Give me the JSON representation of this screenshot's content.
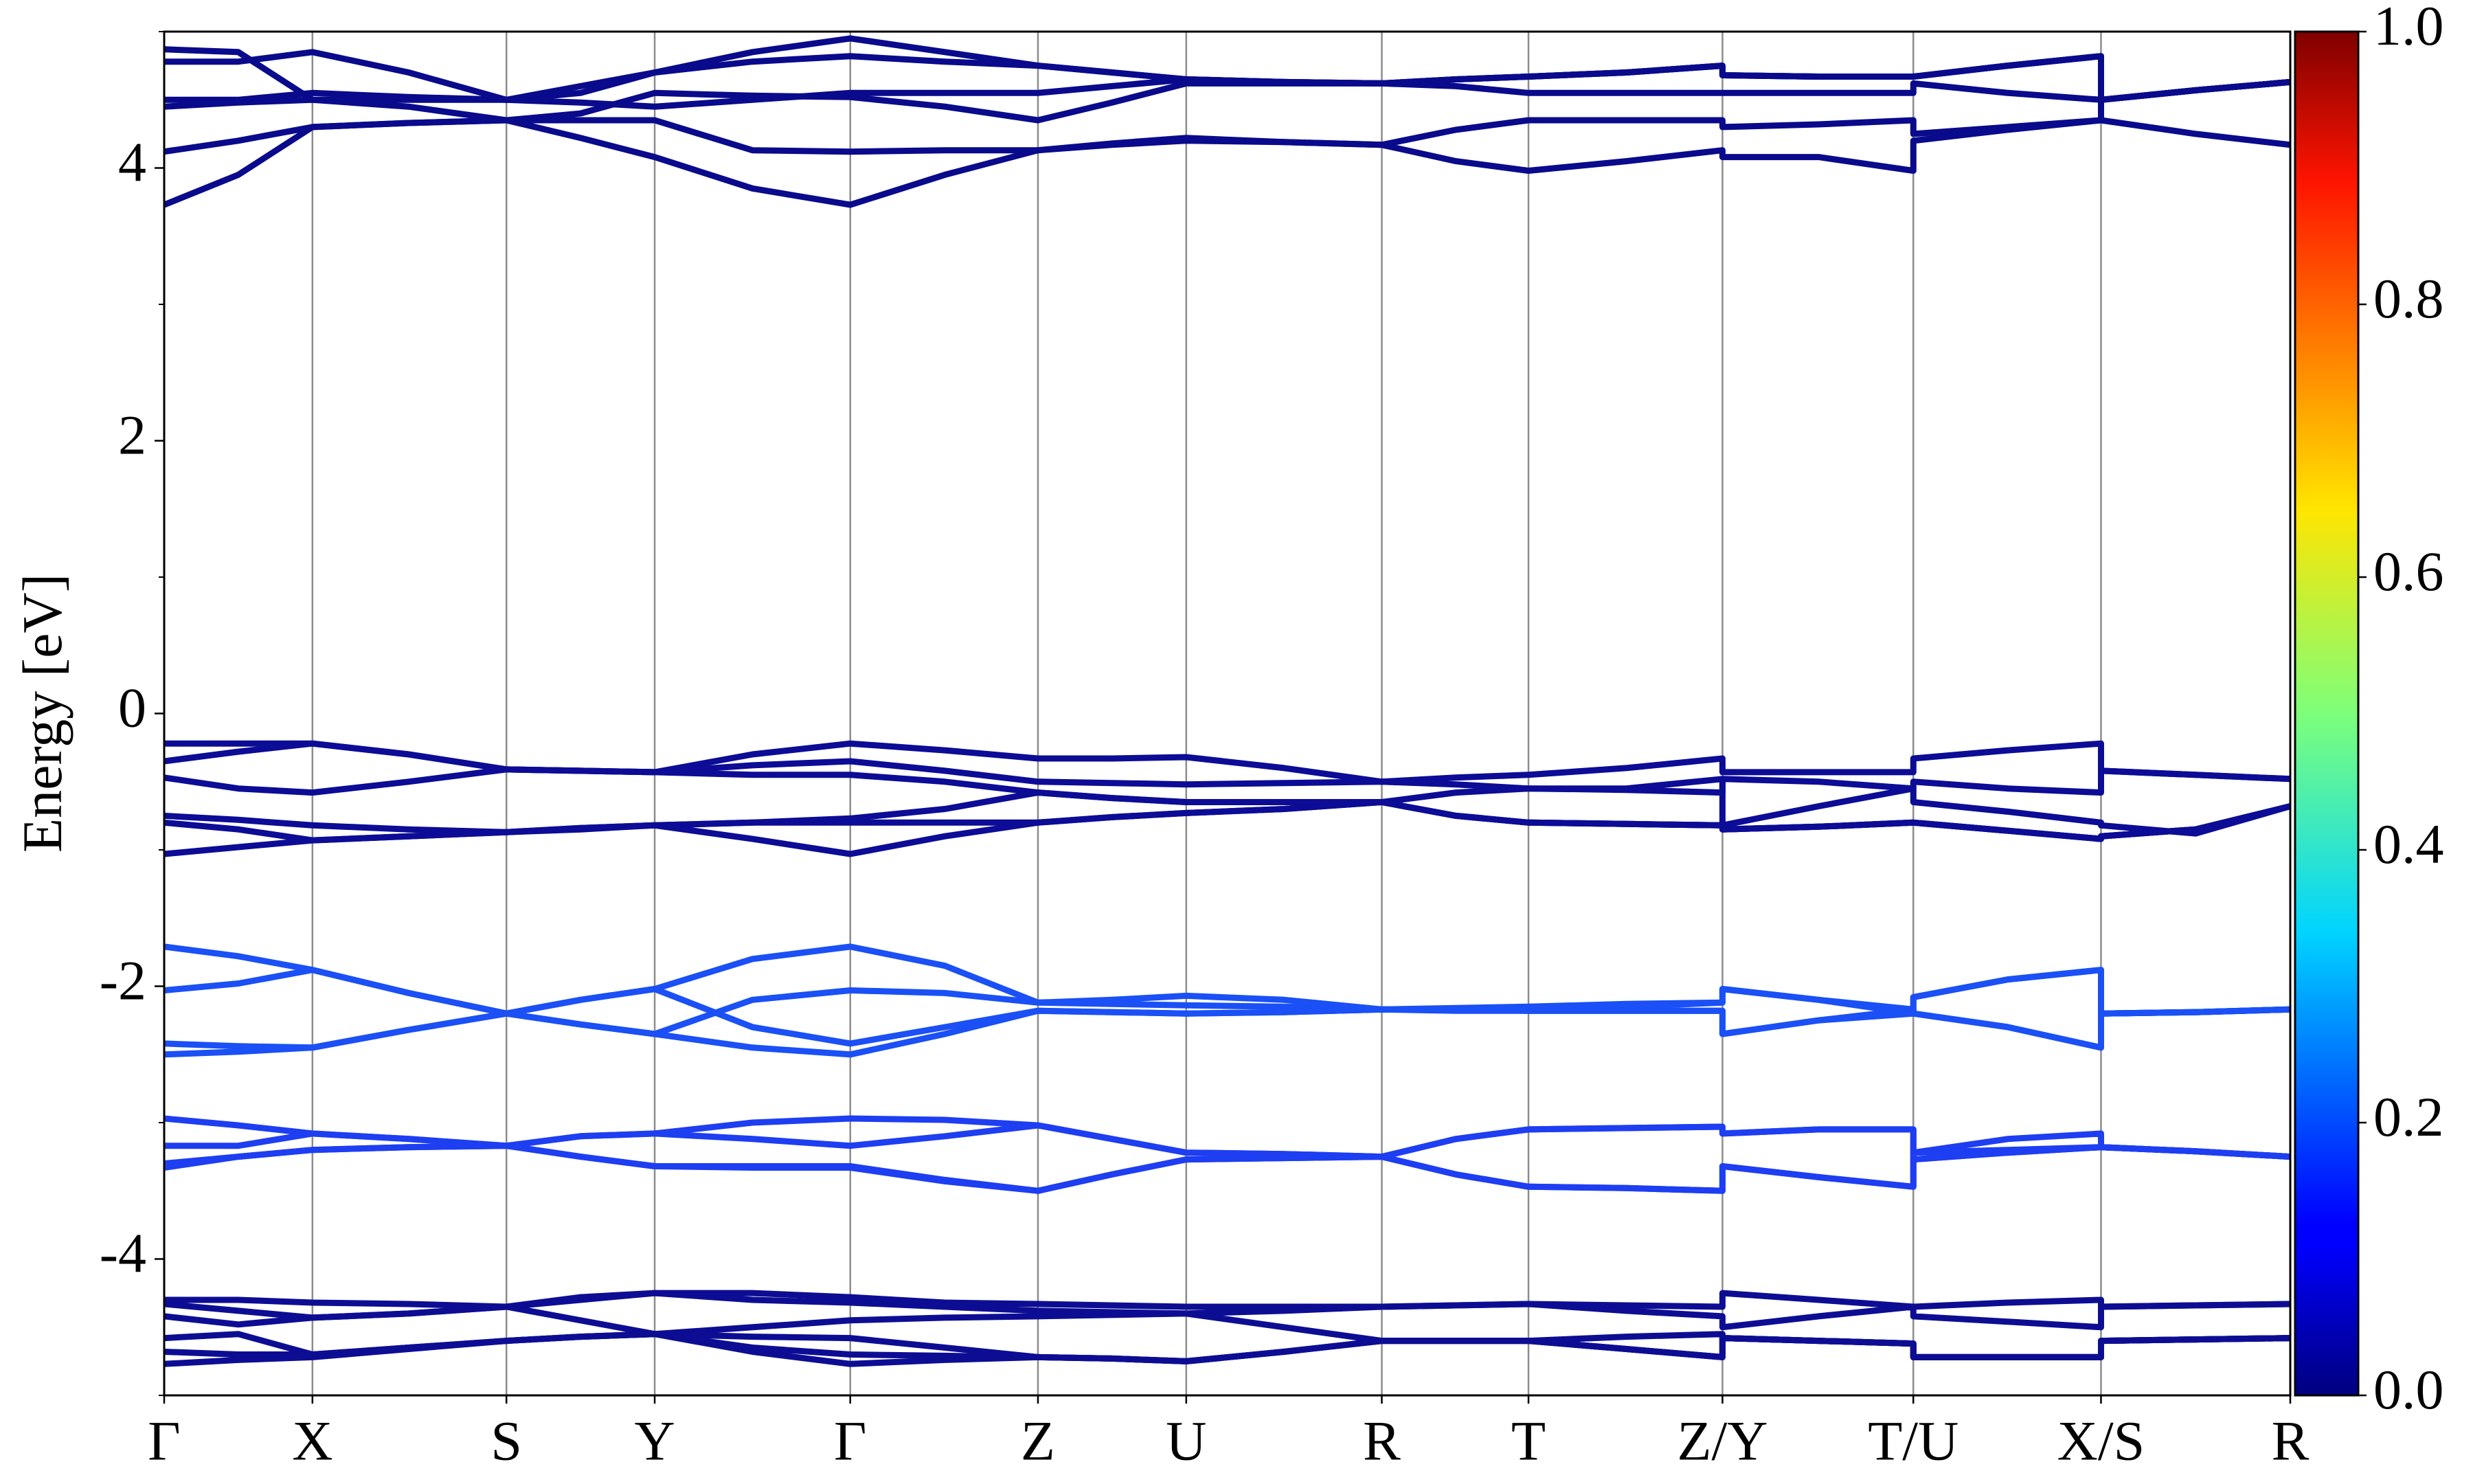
{
  "chart_data": {
    "type": "line",
    "ylabel": "Energy [eV]",
    "x": [
      0,
      0.47,
      0.94,
      1.55,
      2.17,
      2.64,
      3.11,
      3.73,
      4.35,
      4.95,
      5.54,
      6.01,
      6.48,
      7.1,
      7.72,
      8.19,
      8.65,
      9.27,
      9.88,
      9.88,
      10.49,
      11.09,
      11.09,
      11.69,
      12.28,
      12.28,
      12.88,
      13.48
    ],
    "xlim": [
      0,
      13.48
    ],
    "xticks": [
      {
        "value": 0,
        "label": "Γ"
      },
      {
        "value": 0.94,
        "label": "X"
      },
      {
        "value": 2.17,
        "label": "S"
      },
      {
        "value": 3.11,
        "label": "Y"
      },
      {
        "value": 4.35,
        "label": "Γ"
      },
      {
        "value": 5.54,
        "label": "Z"
      },
      {
        "value": 6.48,
        "label": "U"
      },
      {
        "value": 7.72,
        "label": "R"
      },
      {
        "value": 8.65,
        "label": "T"
      },
      {
        "value": 9.88,
        "label": "Z/Y"
      },
      {
        "value": 11.09,
        "label": "T/U"
      },
      {
        "value": 12.28,
        "label": "X/S"
      },
      {
        "value": 13.48,
        "label": "R"
      }
    ],
    "ylim": [
      -5,
      5
    ],
    "yticks": [
      -4,
      -2,
      0,
      2,
      4
    ],
    "yminorticks": [
      -5,
      -3,
      -1,
      1,
      3,
      5
    ],
    "xgrid": true,
    "colorbar": {
      "cmap": "jet",
      "clim": [
        0,
        1
      ],
      "ticks": [
        {
          "value": 0,
          "label": "0.0"
        },
        {
          "value": 0.2,
          "label": "0.2"
        },
        {
          "value": 0.4,
          "label": "0.4"
        },
        {
          "value": 0.6,
          "label": "0.6"
        },
        {
          "value": 0.8,
          "label": "0.8"
        },
        {
          "value": 1,
          "label": "1.0"
        }
      ]
    },
    "series": [
      {
        "color": "#0a0a8c",
        "values": [
          3.73,
          3.95,
          4.3,
          4.33,
          4.35,
          4.22,
          4.08,
          3.85,
          3.73,
          3.95,
          4.13,
          4.17,
          4.2,
          4.19,
          4.17,
          4.05,
          3.98,
          4.05,
          4.13,
          4.08,
          4.08,
          3.98,
          4.2,
          4.28,
          4.35,
          4.35,
          4.25,
          4.17
        ]
      },
      {
        "color": "#0a0a8c",
        "values": [
          4.12,
          4.2,
          4.3,
          4.33,
          4.35,
          4.35,
          4.35,
          4.13,
          4.12,
          4.13,
          4.13,
          4.18,
          4.22,
          4.19,
          4.17,
          4.28,
          4.35,
          4.35,
          4.35,
          4.3,
          4.32,
          4.35,
          4.25,
          4.3,
          4.35,
          4.5,
          4.57,
          4.63
        ]
      },
      {
        "color": "#0a0a8c",
        "values": [
          4.45,
          4.48,
          4.5,
          4.45,
          4.35,
          4.4,
          4.55,
          4.53,
          4.52,
          4.45,
          4.35,
          4.48,
          4.62,
          4.62,
          4.62,
          4.6,
          4.55,
          4.55,
          4.55,
          4.55,
          4.55,
          4.55,
          4.62,
          4.55,
          4.5,
          4.5,
          4.57,
          4.63
        ]
      },
      {
        "color": "#0a0a8c",
        "values": [
          4.5,
          4.5,
          4.55,
          4.52,
          4.5,
          4.48,
          4.45,
          4.5,
          4.55,
          4.55,
          4.55,
          4.6,
          4.65,
          4.63,
          4.62,
          4.65,
          4.67,
          4.7,
          4.75,
          4.68,
          4.67,
          4.67,
          4.67,
          4.75,
          4.82,
          4.5,
          4.57,
          4.63
        ]
      },
      {
        "color": "#0a0a8c",
        "values": [
          4.78,
          4.78,
          4.85,
          4.7,
          4.5,
          4.55,
          4.7,
          4.78,
          4.82,
          4.78,
          4.75,
          4.7,
          4.65,
          4.63,
          4.62,
          4.65,
          4.67,
          4.7,
          4.75,
          4.68,
          4.67,
          4.67,
          4.67,
          4.75,
          4.82,
          4.5,
          4.57,
          4.63
        ]
      },
      {
        "color": "#0a0a8c",
        "values": [
          4.87,
          4.85,
          4.5,
          4.5,
          4.5,
          4.6,
          4.7,
          4.85,
          4.95,
          4.85,
          4.75,
          4.7,
          4.65,
          4.63,
          4.62,
          4.65,
          4.67,
          4.7,
          4.75,
          4.68,
          4.67,
          4.67,
          4.67,
          4.75,
          4.82,
          4.5,
          4.57,
          4.63
        ]
      },
      {
        "color": "#0c0c96",
        "values": [
          -0.22,
          -0.22,
          -0.22,
          -0.3,
          -0.41,
          -0.42,
          -0.43,
          -0.3,
          -0.22,
          -0.27,
          -0.33,
          -0.33,
          -0.32,
          -0.4,
          -0.5,
          -0.47,
          -0.45,
          -0.4,
          -0.33,
          -0.43,
          -0.43,
          -0.43,
          -0.33,
          -0.27,
          -0.22,
          -0.42,
          -0.45,
          -0.48
        ]
      },
      {
        "color": "#0c0c96",
        "values": [
          -0.35,
          -0.28,
          -0.22,
          -0.3,
          -0.41,
          -0.42,
          -0.43,
          -0.38,
          -0.35,
          -0.42,
          -0.5,
          -0.51,
          -0.52,
          -0.51,
          -0.5,
          -0.52,
          -0.55,
          -0.56,
          -0.58,
          -0.48,
          -0.5,
          -0.55,
          -0.5,
          -0.55,
          -0.58,
          -0.42,
          -0.45,
          -0.48
        ]
      },
      {
        "color": "#0c0c96",
        "values": [
          -0.47,
          -0.55,
          -0.58,
          -0.5,
          -0.41,
          -0.42,
          -0.43,
          -0.45,
          -0.45,
          -0.5,
          -0.58,
          -0.62,
          -0.65,
          -0.65,
          -0.65,
          -0.58,
          -0.55,
          -0.55,
          -0.48,
          -0.82,
          -0.68,
          -0.55,
          -0.65,
          -0.72,
          -0.8,
          -0.82,
          -0.88,
          -0.68
        ]
      },
      {
        "color": "#0c0c96",
        "values": [
          -0.75,
          -0.78,
          -0.82,
          -0.85,
          -0.87,
          -0.85,
          -0.82,
          -0.8,
          -0.77,
          -0.7,
          -0.58,
          -0.62,
          -0.65,
          -0.65,
          -0.65,
          -0.75,
          -0.8,
          -0.81,
          -0.82,
          -0.85,
          -0.83,
          -0.8,
          -0.8,
          -0.86,
          -0.92,
          -0.9,
          -0.85,
          -0.68
        ]
      },
      {
        "color": "#0c0c96",
        "values": [
          -0.8,
          -0.85,
          -0.93,
          -0.9,
          -0.87,
          -0.84,
          -0.82,
          -0.8,
          -0.8,
          -0.8,
          -0.8,
          -0.76,
          -0.73,
          -0.7,
          -0.65,
          -0.75,
          -0.8,
          -0.81,
          -0.82,
          -0.85,
          -0.83,
          -0.8,
          -0.8,
          -0.86,
          -0.92,
          -0.9,
          -0.85,
          -0.68
        ]
      },
      {
        "color": "#0c0c96",
        "values": [
          -1.03,
          -0.98,
          -0.93,
          -0.9,
          -0.87,
          -0.84,
          -0.82,
          -0.92,
          -1.03,
          -0.9,
          -0.8,
          -0.76,
          -0.73,
          -0.7,
          -0.65,
          -0.75,
          -0.8,
          -0.81,
          -0.82,
          -0.85,
          -0.83,
          -0.8,
          -0.8,
          -0.86,
          -0.92,
          -0.9,
          -0.85,
          -0.68
        ]
      },
      {
        "color": "#1a50f5",
        "values": [
          -1.71,
          -1.78,
          -1.88,
          -2.05,
          -2.2,
          -2.1,
          -2.02,
          -1.8,
          -1.71,
          -1.85,
          -2.12,
          -2.1,
          -2.07,
          -2.1,
          -2.17,
          -2.17,
          -2.17,
          -2.15,
          -2.12,
          -2.02,
          -2.1,
          -2.2,
          -2.08,
          -1.95,
          -1.88,
          -2.2,
          -2.19,
          -2.17
        ]
      },
      {
        "color": "#1a50f5",
        "values": [
          -2.03,
          -1.98,
          -1.88,
          -2.05,
          -2.2,
          -2.28,
          -2.35,
          -2.1,
          -2.03,
          -2.05,
          -2.12,
          -2.13,
          -2.14,
          -2.15,
          -2.17,
          -2.17,
          -2.18,
          -2.18,
          -2.18,
          -2.35,
          -2.25,
          -2.17,
          -2.2,
          -2.3,
          -2.45,
          -2.2,
          -2.19,
          -2.17
        ]
      },
      {
        "color": "#1a50f5",
        "values": [
          -2.42,
          -2.44,
          -2.45,
          -2.32,
          -2.2,
          -2.1,
          -2.02,
          -2.3,
          -2.42,
          -2.3,
          -2.18,
          -2.19,
          -2.2,
          -2.19,
          -2.17,
          -2.18,
          -2.18,
          -2.18,
          -2.18,
          -2.35,
          -2.25,
          -2.2,
          -2.2,
          -2.3,
          -2.45,
          -2.2,
          -2.19,
          -2.17
        ]
      },
      {
        "color": "#1a50f5",
        "values": [
          -2.5,
          -2.48,
          -2.45,
          -2.32,
          -2.2,
          -2.28,
          -2.35,
          -2.45,
          -2.5,
          -2.35,
          -2.18,
          -2.19,
          -2.2,
          -2.19,
          -2.17,
          -2.16,
          -2.15,
          -2.13,
          -2.12,
          -2.02,
          -2.1,
          -2.17,
          -2.08,
          -1.95,
          -1.88,
          -2.2,
          -2.19,
          -2.17
        ]
      },
      {
        "color": "#1e3ef2",
        "values": [
          -2.97,
          -3.02,
          -3.08,
          -3.12,
          -3.17,
          -3.1,
          -3.08,
          -3.0,
          -2.97,
          -2.98,
          -3.02,
          -3.12,
          -3.22,
          -3.23,
          -3.25,
          -3.12,
          -3.05,
          -3.04,
          -3.03,
          -3.08,
          -3.05,
          -3.05,
          -3.22,
          -3.12,
          -3.08,
          -3.18,
          -3.21,
          -3.25
        ]
      },
      {
        "color": "#1e3ef2",
        "values": [
          -3.17,
          -3.17,
          -3.08,
          -3.12,
          -3.17,
          -3.1,
          -3.08,
          -3.12,
          -3.17,
          -3.1,
          -3.02,
          -3.12,
          -3.22,
          -3.23,
          -3.25,
          -3.12,
          -3.05,
          -3.04,
          -3.03,
          -3.08,
          -3.05,
          -3.05,
          -3.27,
          -3.22,
          -3.18,
          -3.18,
          -3.21,
          -3.25
        ]
      },
      {
        "color": "#1e3ef2",
        "values": [
          -3.3,
          -3.25,
          -3.2,
          -3.18,
          -3.17,
          -3.25,
          -3.32,
          -3.32,
          -3.32,
          -3.42,
          -3.5,
          -3.38,
          -3.27,
          -3.26,
          -3.25,
          -3.38,
          -3.47,
          -3.48,
          -3.5,
          -3.32,
          -3.4,
          -3.47,
          -3.27,
          -3.22,
          -3.18,
          -3.18,
          -3.21,
          -3.25
        ]
      },
      {
        "color": "#1e3ef2",
        "values": [
          -3.33,
          -3.25,
          -3.2,
          -3.18,
          -3.17,
          -3.25,
          -3.32,
          -3.33,
          -3.33,
          -3.43,
          -3.5,
          -3.38,
          -3.27,
          -3.26,
          -3.25,
          -3.38,
          -3.47,
          -3.48,
          -3.5,
          -3.32,
          -3.4,
          -3.47,
          -3.22,
          -3.2,
          -3.18,
          -3.18,
          -3.21,
          -3.25
        ]
      },
      {
        "color": "#0d0d94",
        "values": [
          -4.3,
          -4.3,
          -4.32,
          -4.33,
          -4.35,
          -4.28,
          -4.25,
          -4.25,
          -4.28,
          -4.32,
          -4.33,
          -4.34,
          -4.35,
          -4.35,
          -4.35,
          -4.34,
          -4.33,
          -4.34,
          -4.35,
          -4.25,
          -4.3,
          -4.35,
          -4.35,
          -4.32,
          -4.3,
          -4.35,
          -4.34,
          -4.33
        ]
      },
      {
        "color": "#0d0d94",
        "values": [
          -4.33,
          -4.38,
          -4.43,
          -4.4,
          -4.35,
          -4.3,
          -4.25,
          -4.3,
          -4.32,
          -4.35,
          -4.38,
          -4.39,
          -4.4,
          -4.38,
          -4.35,
          -4.34,
          -4.33,
          -4.38,
          -4.42,
          -4.5,
          -4.42,
          -4.35,
          -4.42,
          -4.46,
          -4.5,
          -4.35,
          -4.34,
          -4.33
        ]
      },
      {
        "color": "#0d0d94",
        "values": [
          -4.42,
          -4.48,
          -4.43,
          -4.4,
          -4.35,
          -4.45,
          -4.55,
          -4.5,
          -4.45,
          -4.43,
          -4.42,
          -4.41,
          -4.4,
          -4.5,
          -4.6,
          -4.6,
          -4.6,
          -4.57,
          -4.55,
          -4.58,
          -4.6,
          -4.62,
          -4.72,
          -4.72,
          -4.72,
          -4.6,
          -4.59,
          -4.58
        ]
      },
      {
        "color": "#0d0d94",
        "values": [
          -4.58,
          -4.55,
          -4.7,
          -4.65,
          -4.6,
          -4.57,
          -4.55,
          -4.57,
          -4.58,
          -4.65,
          -4.72,
          -4.73,
          -4.75,
          -4.68,
          -4.6,
          -4.6,
          -4.6,
          -4.66,
          -4.72,
          -4.58,
          -4.6,
          -4.62,
          -4.72,
          -4.72,
          -4.72,
          -4.6,
          -4.59,
          -4.58
        ]
      },
      {
        "color": "#0d0d94",
        "values": [
          -4.68,
          -4.7,
          -4.7,
          -4.65,
          -4.6,
          -4.57,
          -4.55,
          -4.65,
          -4.7,
          -4.71,
          -4.72,
          -4.73,
          -4.75,
          -4.68,
          -4.6,
          -4.6,
          -4.6,
          -4.66,
          -4.72,
          -4.58,
          -4.6,
          -4.62,
          -4.72,
          -4.72,
          -4.72,
          -4.6,
          -4.59,
          -4.58
        ]
      },
      {
        "color": "#0d0d94",
        "values": [
          -4.77,
          -4.74,
          -4.72,
          -4.66,
          -4.6,
          -4.57,
          -4.55,
          -4.68,
          -4.77,
          -4.74,
          -4.72,
          -4.73,
          -4.75,
          -4.68,
          -4.6,
          -4.6,
          -4.6,
          -4.66,
          -4.72,
          -4.58,
          -4.6,
          -4.62,
          -4.72,
          -4.72,
          -4.72,
          -4.6,
          -4.59,
          -4.58
        ]
      }
    ]
  }
}
